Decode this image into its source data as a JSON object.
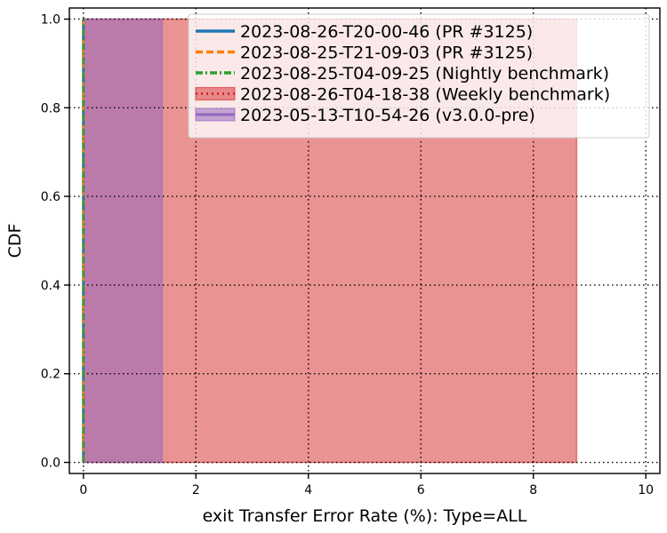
{
  "chart_data": {
    "type": "area",
    "title": "",
    "xlabel": "exit Transfer Error Rate (%): Type=ALL",
    "ylabel": "CDF",
    "xlim": [
      -0.25,
      10.25
    ],
    "ylim": [
      -0.025,
      1.025
    ],
    "xticks": [
      0,
      2,
      4,
      6,
      8,
      10
    ],
    "yticks": [
      0.0,
      0.2,
      0.4,
      0.6,
      0.8,
      1.0
    ],
    "xtick_labels": [
      "0",
      "2",
      "4",
      "6",
      "8",
      "10"
    ],
    "ytick_labels": [
      "0.0",
      "0.2",
      "0.4",
      "0.6",
      "0.8",
      "1.0"
    ],
    "grid": true,
    "grid_style": "dotted",
    "legend_position": "top-right",
    "series": [
      {
        "name": "2023-08-26-T20-00-46 (PR #3125)",
        "style": "solid-line",
        "color": "#1f77b4",
        "x": [
          0,
          0
        ],
        "y": [
          0.0,
          1.0
        ]
      },
      {
        "name": "2023-08-25-T21-09-03 (PR #3125)",
        "style": "dashed-line",
        "color": "#ff7f0e",
        "x": [
          0,
          0
        ],
        "y": [
          0.0,
          1.0
        ]
      },
      {
        "name": "2023-08-25-T04-09-25 (Nightly benchmark)",
        "style": "dashdot-line",
        "color": "#2ca02c",
        "x": [
          0,
          0
        ],
        "y": [
          0.0,
          1.0
        ]
      },
      {
        "name": "2023-08-26-T04-18-38 (Weekly benchmark)",
        "style": "dotted-band",
        "color": "#d62728",
        "x_range": [
          0.0,
          8.77
        ],
        "y": [
          0.0,
          1.0
        ]
      },
      {
        "name": "2023-05-13-T10-54-26 (v3.0.0-pre)",
        "style": "solid-band",
        "color": "#9467bd",
        "x_range": [
          0.0,
          1.4
        ],
        "y": [
          0.0,
          1.0
        ]
      }
    ]
  }
}
